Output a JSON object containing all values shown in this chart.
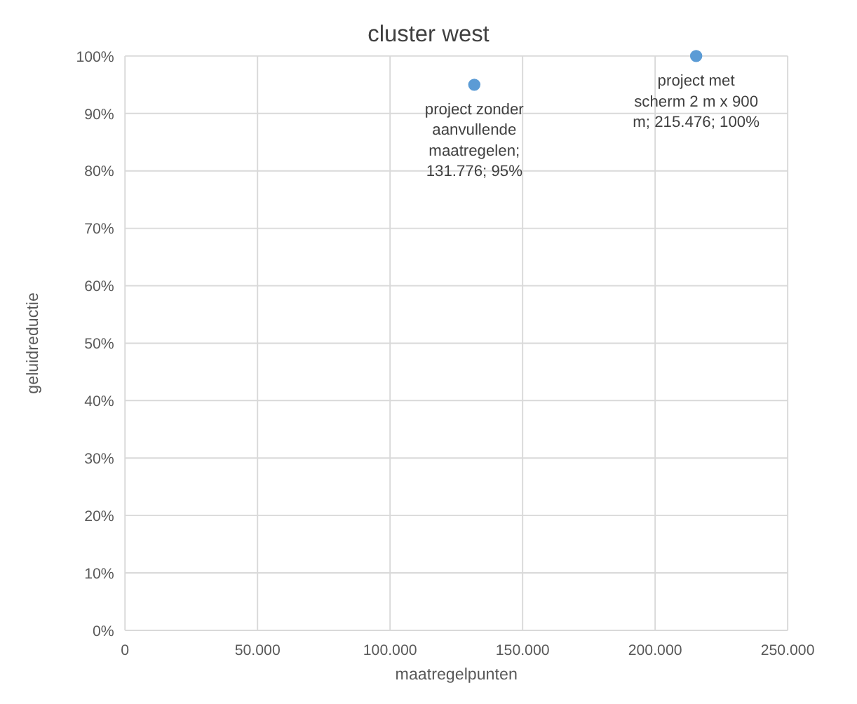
{
  "chart_data": {
    "type": "scatter",
    "title": "cluster west",
    "xlabel": "maatregelpunten",
    "ylabel": "geluidreductie",
    "x": [
      131776,
      215476
    ],
    "series": [
      {
        "color": "#5b9bd5",
        "values": [
          95,
          100
        ]
      }
    ],
    "xlim": [
      0,
      250000
    ],
    "ylim": [
      0,
      100
    ],
    "xticks": [
      0,
      {
        "value": 50000,
        "label": "50.000"
      },
      {
        "value": 100000,
        "label": "100.000"
      },
      {
        "value": 150000,
        "label": "150.000"
      },
      {
        "value": 200000,
        "label": "200.000"
      },
      {
        "value": 250000,
        "label": "250.000"
      }
    ],
    "yticks": [
      {
        "value": 0,
        "label": "0%"
      },
      {
        "value": 10,
        "label": "10%"
      },
      {
        "value": 20,
        "label": "20%"
      },
      {
        "value": 30,
        "label": "30%"
      },
      {
        "value": 40,
        "label": "40%"
      },
      {
        "value": 50,
        "label": "50%"
      },
      {
        "value": 60,
        "label": "60%"
      },
      {
        "value": 70,
        "label": "70%"
      },
      {
        "value": 80,
        "label": "80%"
      },
      {
        "value": 90,
        "label": "90%"
      },
      {
        "value": 100,
        "label": "100%"
      }
    ],
    "grid": true,
    "marker": "circle",
    "annotations": [
      {
        "text": "project zonder aanvullende maatregelen; 131.776; 95%",
        "x": 131776,
        "y": 95
      },
      {
        "text": "project met scherm 2 m x 900 m; 215.476; 100%",
        "x": 215476,
        "y": 100
      }
    ]
  }
}
